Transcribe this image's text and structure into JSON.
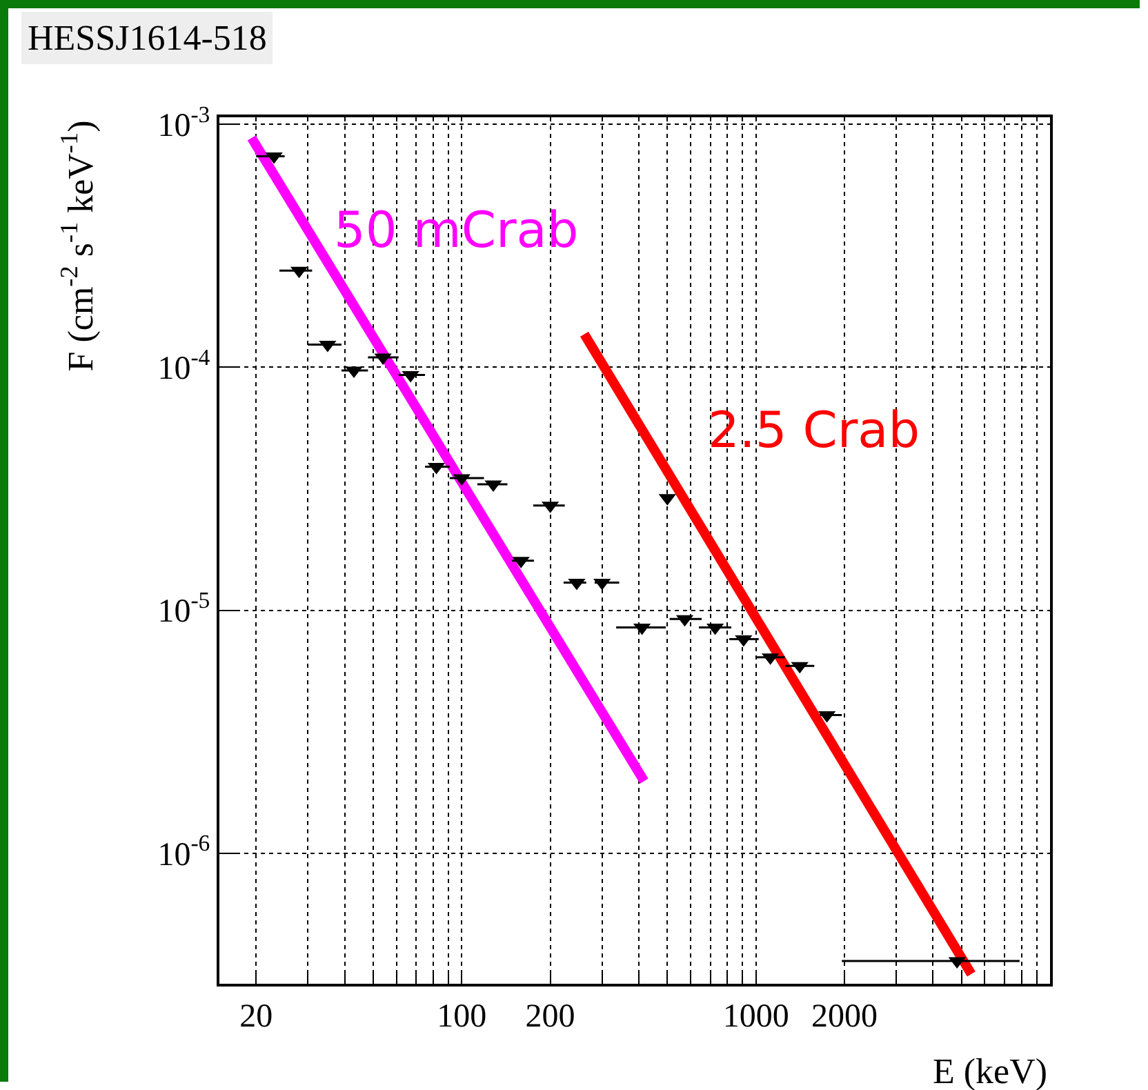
{
  "chart_data": {
    "type": "scatter",
    "title": "HESSJ1614-518",
    "xlabel": "E (keV)",
    "ylabel": "F (cm$^{-2}$ s$^{-1}$ keV$^{-1}$)",
    "log": "xy",
    "grid": true,
    "legend": false,
    "xlim": [
      15,
      10000
    ],
    "ylim": [
      2.9e-07,
      0.00107
    ],
    "xticks": [
      20,
      {
        "value": 30,
        "label": null
      },
      {
        "value": 40,
        "label": null
      },
      {
        "value": 50,
        "label": null
      },
      {
        "value": 60,
        "label": null
      },
      {
        "value": 70,
        "label": null
      },
      {
        "value": 80,
        "label": null
      },
      {
        "value": 90,
        "label": null
      },
      100,
      200,
      {
        "value": 300,
        "label": null
      },
      {
        "value": 400,
        "label": null
      },
      {
        "value": 500,
        "label": null
      },
      {
        "value": 600,
        "label": null
      },
      {
        "value": 700,
        "label": null
      },
      {
        "value": 800,
        "label": null
      },
      {
        "value": 900,
        "label": null
      },
      1000,
      2000,
      {
        "value": 3000,
        "label": null
      },
      {
        "value": 4000,
        "label": null
      },
      {
        "value": 5000,
        "label": null
      },
      {
        "value": 6000,
        "label": null
      },
      {
        "value": 7000,
        "label": null
      },
      {
        "value": 8000,
        "label": null
      },
      {
        "value": 9000,
        "label": null
      }
    ],
    "yticks": [
      {
        "value": 1e-06,
        "label": "10$^{-6}$"
      },
      {
        "value": 1e-05,
        "label": "10$^{-5}$"
      },
      {
        "value": 0.0001,
        "label": "10$^{-4}$"
      },
      {
        "value": 0.001,
        "label": "10$^{-3}$"
      }
    ],
    "series": [
      {
        "color": "#000000",
        "marker": "triangle",
        "x": [
          23,
          28,
          35,
          43,
          54,
          67,
          82,
          100,
          128,
          159,
          200,
          246,
          300,
          410,
          500,
          573,
          727,
          908,
          1120,
          1410,
          1744,
          4830
        ],
        "values": [
          0.00074,
          0.00025,
          0.000124,
          9.7e-05,
          0.00011,
          9.3e-05,
          3.9e-05,
          3.5e-05,
          3.3e-05,
          1.6e-05,
          2.7e-05,
          1.3e-05,
          1.3e-05,
          8.5e-06,
          2.9e-05,
          9.2e-06,
          8.5e-06,
          7.6e-06,
          6.4e-06,
          5.9e-06,
          3.7e-06,
          3.6e-07
        ],
        "xerrors": [
          [
            20,
            25
          ],
          [
            24,
            31
          ],
          [
            30,
            39
          ],
          [
            39,
            48
          ],
          [
            48,
            61
          ],
          [
            61,
            75
          ],
          [
            75,
            91
          ],
          [
            91,
            119
          ],
          [
            113,
            143
          ],
          [
            148,
            176
          ],
          [
            175,
            224
          ],
          [
            222,
            265
          ],
          [
            283,
            343
          ],
          [
            335,
            494
          ],
          null,
          [
            509,
            654
          ],
          [
            640,
            825
          ],
          [
            812,
            1022
          ],
          [
            1000,
            1255
          ],
          [
            1258,
            1580
          ],
          [
            1650,
            1960
          ],
          [
            1960,
            7880
          ]
        ]
      },
      {
        "type": "line",
        "name": "50 mCrab",
        "color": "#ff00ff",
        "marker": "none",
        "x": [
          19.3,
          417
        ],
        "values": [
          0.00088,
          1.98e-06
        ]
      },
      {
        "type": "line",
        "name": "2.5 Crab",
        "color": "#ff0000",
        "marker": "none",
        "x": [
          261,
          5400
        ],
        "values": [
          0.000137,
          3.18e-07
        ]
      }
    ]
  }
}
